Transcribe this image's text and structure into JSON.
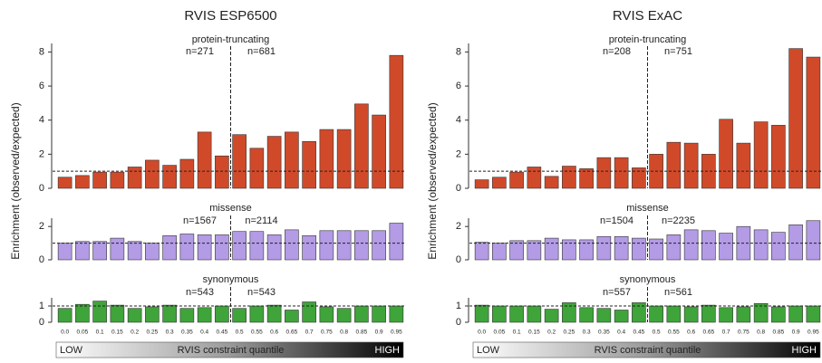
{
  "chart_data": [
    {
      "type": "bar",
      "title": "RVIS ESP6500",
      "y_label": "Enrichment (observed/expected)",
      "x_label": "RVIS constraint quantile",
      "low_label": "LOW",
      "high_label": "HIGH",
      "categories": [
        "0.0",
        "0.05",
        "0.1",
        "0.15",
        "0.2",
        "0.25",
        "0.3",
        "0.35",
        "0.4",
        "0.45",
        "0.5",
        "0.55",
        "0.6",
        "0.65",
        "0.7",
        "0.75",
        "0.8",
        "0.85",
        "0.9",
        "0.95"
      ],
      "subplots": [
        {
          "subtitle": "protein-truncating",
          "n_left": "n=271",
          "n_right": "n=681",
          "color": "#d04a2a",
          "reference_line": 1,
          "ylim": [
            0,
            8.5
          ],
          "yticks": [
            0,
            2,
            4,
            6,
            8
          ],
          "values": [
            0.65,
            0.75,
            0.95,
            0.95,
            1.25,
            1.65,
            1.35,
            1.7,
            3.3,
            1.9,
            3.15,
            2.35,
            3.05,
            3.3,
            2.75,
            3.45,
            3.45,
            4.95,
            4.3,
            7.8
          ]
        },
        {
          "subtitle": "missense",
          "n_left": "n=1567",
          "n_right": "n=2114",
          "color": "#b39be6",
          "reference_line": 1,
          "ylim": [
            0,
            2.5
          ],
          "yticks": [
            0,
            2
          ],
          "values": [
            1.0,
            1.1,
            1.1,
            1.3,
            1.1,
            1.0,
            1.45,
            1.55,
            1.5,
            1.5,
            1.7,
            1.7,
            1.5,
            1.8,
            1.45,
            1.75,
            1.75,
            1.75,
            1.75,
            2.2
          ]
        },
        {
          "subtitle": "synonymous",
          "n_left": "n=543",
          "n_right": "n=543",
          "color": "#3fa43a",
          "reference_line": 1,
          "ylim": [
            0,
            1.5
          ],
          "yticks": [
            0,
            1
          ],
          "values": [
            0.85,
            1.1,
            1.3,
            1.05,
            0.85,
            0.95,
            1.05,
            0.85,
            0.9,
            1.0,
            0.85,
            1.0,
            1.05,
            0.75,
            1.25,
            0.95,
            0.85,
            1.0,
            1.0,
            1.0
          ]
        }
      ]
    },
    {
      "type": "bar",
      "title": "RVIS ExAC",
      "y_label": "Enrichment (observed/expected)",
      "x_label": "RVIS constraint quantile",
      "low_label": "LOW",
      "high_label": "HIGH",
      "categories": [
        "0.0",
        "0.05",
        "0.1",
        "0.15",
        "0.2",
        "0.25",
        "0.3",
        "0.35",
        "0.4",
        "0.45",
        "0.5",
        "0.55",
        "0.6",
        "0.65",
        "0.7",
        "0.75",
        "0.8",
        "0.85",
        "0.9",
        "0.95"
      ],
      "subplots": [
        {
          "subtitle": "protein-truncating",
          "n_left": "n=208",
          "n_right": "n=751",
          "color": "#d04a2a",
          "reference_line": 1,
          "ylim": [
            0,
            8.5
          ],
          "yticks": [
            0,
            2,
            4,
            6,
            8
          ],
          "values": [
            0.5,
            0.65,
            0.95,
            1.25,
            0.7,
            1.3,
            1.15,
            1.8,
            1.8,
            1.2,
            2.0,
            2.7,
            2.65,
            2.0,
            4.05,
            2.65,
            3.9,
            3.7,
            8.2,
            7.7
          ]
        },
        {
          "subtitle": "missense",
          "n_left": "n=1504",
          "n_right": "n=2235",
          "color": "#b39be6",
          "reference_line": 1,
          "ylim": [
            0,
            2.5
          ],
          "yticks": [
            0,
            2
          ],
          "values": [
            1.05,
            1.0,
            1.15,
            1.15,
            1.3,
            1.2,
            1.2,
            1.4,
            1.4,
            1.3,
            1.25,
            1.5,
            1.8,
            1.75,
            1.6,
            2.0,
            1.8,
            1.65,
            2.1,
            2.35
          ]
        },
        {
          "subtitle": "synonymous",
          "n_left": "n=557",
          "n_right": "n=561",
          "color": "#3fa43a",
          "reference_line": 1,
          "ylim": [
            0,
            1.5
          ],
          "yticks": [
            0,
            1
          ],
          "values": [
            1.05,
            1.0,
            1.0,
            1.0,
            0.8,
            1.2,
            0.9,
            0.85,
            0.75,
            1.2,
            1.0,
            1.0,
            0.95,
            1.05,
            0.9,
            0.95,
            1.15,
            0.95,
            1.0,
            1.0
          ]
        }
      ]
    }
  ]
}
